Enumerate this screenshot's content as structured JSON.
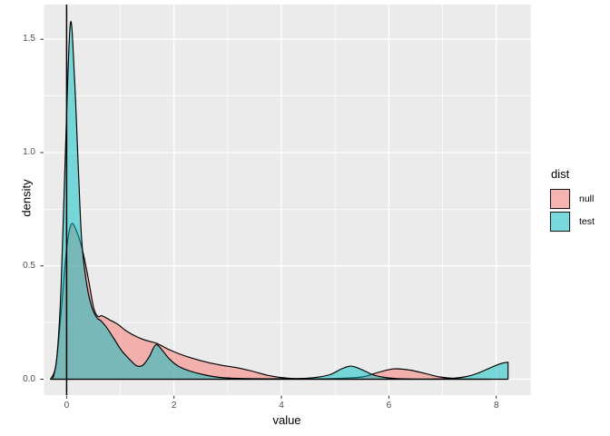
{
  "chart_data": {
    "type": "area",
    "subtype": "overlapping-density",
    "title": "",
    "xlabel": "value",
    "ylabel": "density",
    "x_ticks": [
      0,
      2,
      4,
      6,
      8
    ],
    "x_tick_labels": [
      "0",
      "2",
      "4",
      "6",
      "8"
    ],
    "x_minor": [
      1,
      3,
      5,
      7
    ],
    "y_ticks": [
      0,
      0.5,
      1.0,
      1.5
    ],
    "y_tick_labels": [
      "0.0",
      "0.5",
      "1.0",
      "1.5"
    ],
    "y_minor": [
      0.25,
      0.75,
      1.25
    ],
    "xlim": [
      -0.42,
      8.64
    ],
    "ylim": [
      -0.07,
      1.653
    ],
    "grid": true,
    "panel_bg": "#EBEBEB",
    "grid_color": "#FFFFFF",
    "outline_color": "#000000",
    "tick_mark_color": "#333333",
    "tick_text_color": "#4D4D4D",
    "fill_alpha": 0.5,
    "vline_x": 0,
    "legend": {
      "title": "dist",
      "position": "right",
      "entries": [
        {
          "label": "null",
          "color": "#F8766D"
        },
        {
          "label": "test",
          "color": "#00BFC4"
        }
      ]
    },
    "series": [
      {
        "name": "null",
        "color": "#F8766D",
        "points": [
          [
            -0.3,
            0.0
          ],
          [
            -0.2,
            0.06
          ],
          [
            -0.1,
            0.3
          ],
          [
            0.0,
            0.575
          ],
          [
            0.09,
            0.685
          ],
          [
            0.2,
            0.645
          ],
          [
            0.3,
            0.565
          ],
          [
            0.4,
            0.45
          ],
          [
            0.5,
            0.32
          ],
          [
            0.58,
            0.278
          ],
          [
            0.66,
            0.28
          ],
          [
            0.8,
            0.262
          ],
          [
            0.95,
            0.243
          ],
          [
            1.12,
            0.212
          ],
          [
            1.32,
            0.186
          ],
          [
            1.5,
            0.17
          ],
          [
            1.67,
            0.159
          ],
          [
            1.88,
            0.134
          ],
          [
            2.1,
            0.112
          ],
          [
            2.35,
            0.092
          ],
          [
            2.6,
            0.076
          ],
          [
            2.9,
            0.061
          ],
          [
            3.15,
            0.052
          ],
          [
            3.45,
            0.036
          ],
          [
            3.75,
            0.017
          ],
          [
            4.05,
            0.006
          ],
          [
            4.35,
            0.002
          ],
          [
            4.75,
            0.002
          ],
          [
            5.1,
            0.004
          ],
          [
            5.5,
            0.01
          ],
          [
            5.8,
            0.03
          ],
          [
            6.1,
            0.046
          ],
          [
            6.4,
            0.04
          ],
          [
            6.7,
            0.024
          ],
          [
            6.95,
            0.01
          ],
          [
            7.25,
            0.003
          ],
          [
            7.6,
            0.001
          ],
          [
            7.9,
            0.0
          ]
        ]
      },
      {
        "name": "test",
        "color": "#00BFC4",
        "points": [
          [
            -0.26,
            0.0
          ],
          [
            -0.18,
            0.1
          ],
          [
            -0.1,
            0.42
          ],
          [
            -0.02,
            1.02
          ],
          [
            0.07,
            1.57
          ],
          [
            0.15,
            1.32
          ],
          [
            0.22,
            0.92
          ],
          [
            0.28,
            0.62
          ],
          [
            0.36,
            0.44
          ],
          [
            0.46,
            0.325
          ],
          [
            0.56,
            0.272
          ],
          [
            0.64,
            0.258
          ],
          [
            0.74,
            0.23
          ],
          [
            0.88,
            0.18
          ],
          [
            1.02,
            0.128
          ],
          [
            1.14,
            0.096
          ],
          [
            1.3,
            0.06
          ],
          [
            1.42,
            0.062
          ],
          [
            1.54,
            0.1
          ],
          [
            1.66,
            0.152
          ],
          [
            1.78,
            0.128
          ],
          [
            1.92,
            0.088
          ],
          [
            2.08,
            0.058
          ],
          [
            2.3,
            0.036
          ],
          [
            2.55,
            0.02
          ],
          [
            2.85,
            0.008
          ],
          [
            3.15,
            0.004
          ],
          [
            3.55,
            0.002
          ],
          [
            3.95,
            0.002
          ],
          [
            4.3,
            0.003
          ],
          [
            4.6,
            0.007
          ],
          [
            4.9,
            0.02
          ],
          [
            5.12,
            0.046
          ],
          [
            5.3,
            0.058
          ],
          [
            5.5,
            0.042
          ],
          [
            5.7,
            0.02
          ],
          [
            5.92,
            0.008
          ],
          [
            6.15,
            0.003
          ],
          [
            6.45,
            0.001
          ],
          [
            6.8,
            0.001
          ],
          [
            7.1,
            0.003
          ],
          [
            7.4,
            0.01
          ],
          [
            7.65,
            0.026
          ],
          [
            7.9,
            0.052
          ],
          [
            8.1,
            0.07
          ],
          [
            8.22,
            0.075
          ]
        ],
        "right_cutoff": 8.22
      }
    ]
  }
}
